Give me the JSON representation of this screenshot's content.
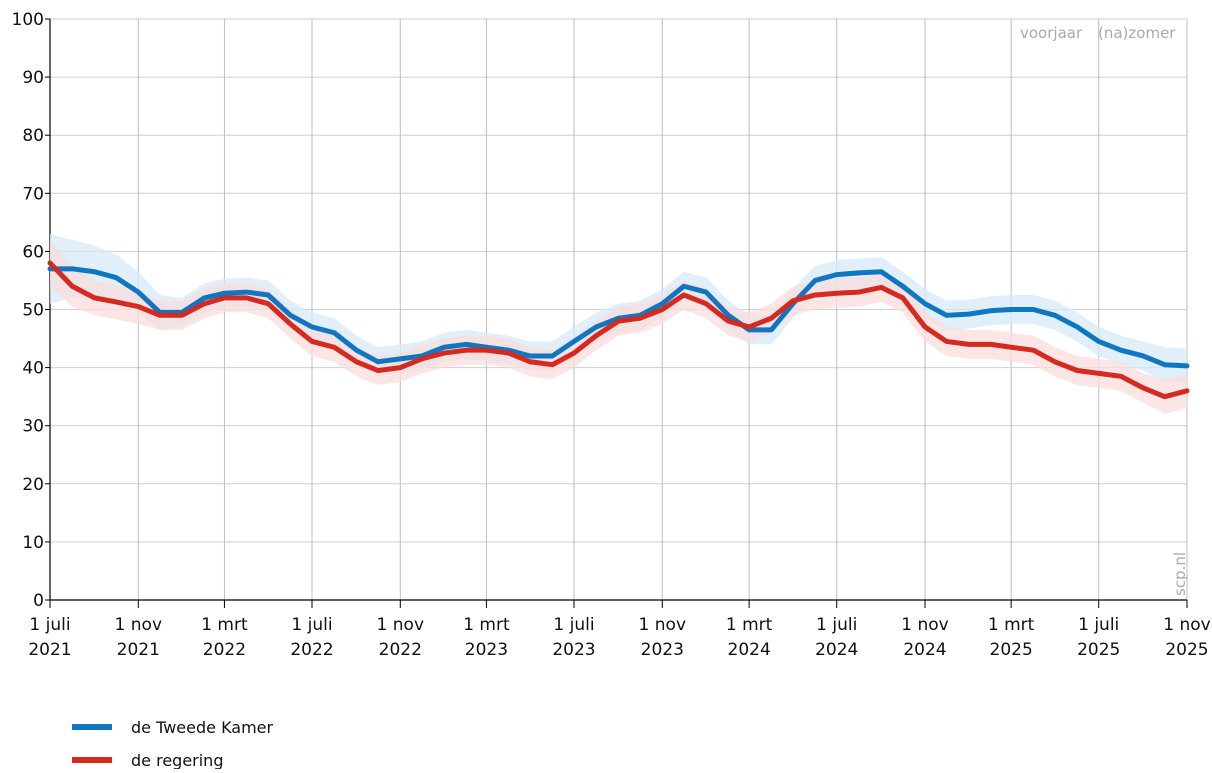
{
  "chart_data": {
    "type": "line",
    "x": [
      "2021-07-01",
      "2021-08-01",
      "2021-09-01",
      "2021-10-01",
      "2021-11-01",
      "2021-12-01",
      "2022-01-01",
      "2022-02-01",
      "2022-03-01",
      "2022-04-01",
      "2022-05-01",
      "2022-06-01",
      "2022-07-01",
      "2022-08-01",
      "2022-09-01",
      "2022-10-01",
      "2022-11-01",
      "2022-12-01",
      "2023-01-01",
      "2023-02-01",
      "2023-03-01",
      "2023-04-01",
      "2023-05-01",
      "2023-06-01",
      "2023-07-01",
      "2023-08-01",
      "2023-09-01",
      "2023-10-01",
      "2023-11-01",
      "2023-12-01",
      "2024-01-01",
      "2024-02-01",
      "2024-03-01",
      "2024-04-01",
      "2024-05-01",
      "2024-06-01",
      "2024-07-01",
      "2024-08-01",
      "2024-09-01",
      "2024-10-01",
      "2024-11-01",
      "2024-12-01",
      "2025-01-01",
      "2025-02-01",
      "2025-03-01",
      "2025-04-01",
      "2025-05-01",
      "2025-06-01",
      "2025-07-01",
      "2025-08-01",
      "2025-09-01",
      "2025-10-01",
      "2025-11-01"
    ],
    "series": [
      {
        "name": "de Tweede Kamer",
        "color": "#0f76c1",
        "band_color": "#d6e9f7",
        "values": [
          57,
          57,
          56.5,
          55.5,
          53,
          49.5,
          49.5,
          52,
          52.8,
          53,
          52.5,
          49,
          47,
          46,
          43,
          41,
          41.5,
          42,
          43.5,
          44,
          43.5,
          43,
          42,
          42,
          44.5,
          47,
          48.5,
          49,
          51,
          54,
          53,
          49,
          46.5,
          46.5,
          51,
          55,
          56,
          56.3,
          56.5,
          54,
          51,
          49,
          49.2,
          49.8,
          50,
          50,
          49,
          47,
          44.5,
          43,
          42,
          40.5,
          40.3
        ],
        "margin": [
          6,
          5,
          4.5,
          4,
          3.5,
          3,
          2.5,
          2.5,
          2.5,
          2.5,
          2.5,
          2.5,
          2.5,
          2.5,
          2.5,
          2.5,
          2.5,
          2.5,
          2.5,
          2.5,
          2.5,
          2.5,
          2.5,
          2.5,
          2.5,
          2.5,
          2.5,
          2.5,
          2.5,
          2.5,
          2.5,
          2.5,
          2.5,
          2.5,
          2.5,
          2.5,
          2.5,
          2.5,
          2.5,
          2.5,
          2.5,
          2.5,
          2.5,
          2.5,
          2.5,
          2.5,
          2.5,
          2.5,
          2.5,
          2.5,
          2.5,
          3,
          3
        ]
      },
      {
        "name": "de regering",
        "color": "#d52a1f",
        "band_color": "#f9dedc",
        "values": [
          58,
          54,
          52,
          51.3,
          50.5,
          49,
          49,
          51,
          52,
          52,
          51,
          47.5,
          44.5,
          43.5,
          41,
          39.5,
          40,
          41.5,
          42.5,
          43,
          43,
          42.5,
          41,
          40.5,
          42.5,
          45.5,
          48,
          48.5,
          50,
          52.5,
          51,
          48,
          47,
          48.5,
          51.5,
          52.5,
          52.8,
          53,
          53.8,
          52,
          47,
          44.5,
          44,
          44,
          43.5,
          43,
          41,
          39.5,
          39,
          38.5,
          36.5,
          35,
          36
        ],
        "margin": [
          4,
          3.5,
          3,
          3,
          3,
          2.5,
          2.5,
          2.5,
          2.5,
          2.5,
          2.5,
          2.5,
          2.5,
          2.5,
          2.5,
          2.5,
          2.5,
          2.5,
          2.5,
          2.5,
          2.5,
          2.5,
          2.5,
          2.5,
          2.5,
          2.5,
          2.5,
          2.5,
          2.5,
          2.5,
          2.5,
          2.5,
          2.5,
          2.5,
          2.5,
          2.5,
          2.5,
          2.5,
          2.5,
          2.5,
          2.5,
          2.5,
          2.5,
          2.5,
          2.5,
          2.5,
          2.5,
          2.5,
          2.5,
          2.5,
          2.5,
          3,
          3
        ]
      }
    ],
    "xlim": [
      "2021-07-01",
      "2025-11-01"
    ],
    "xticks": [
      {
        "value": "2021-07-01",
        "label": [
          "1 juli",
          "2021"
        ]
      },
      {
        "value": "2021-11-01",
        "label": [
          "1 nov",
          "2021"
        ]
      },
      {
        "value": "2022-03-01",
        "label": [
          "1 mrt",
          "2022"
        ]
      },
      {
        "value": "2022-07-01",
        "label": [
          "1 juli",
          "2022"
        ]
      },
      {
        "value": "2022-11-01",
        "label": [
          "1 nov",
          "2022"
        ]
      },
      {
        "value": "2023-03-01",
        "label": [
          "1 mrt",
          "2023"
        ]
      },
      {
        "value": "2023-07-01",
        "label": [
          "1 juli",
          "2023"
        ]
      },
      {
        "value": "2023-11-01",
        "label": [
          "1 nov",
          "2023"
        ]
      },
      {
        "value": "2024-03-01",
        "label": [
          "1 mrt",
          "2024"
        ]
      },
      {
        "value": "2024-07-01",
        "label": [
          "1 juli",
          "2024"
        ]
      },
      {
        "value": "2024-11-01",
        "label": [
          "1 nov",
          "2024"
        ]
      },
      {
        "value": "2025-03-01",
        "label": [
          "1 mrt",
          "2025"
        ]
      },
      {
        "value": "2025-07-01",
        "label": [
          "1 juli",
          "2025"
        ]
      },
      {
        "value": "2025-11-01",
        "label": [
          "1 nov",
          "2025"
        ]
      }
    ],
    "ylim": [
      0,
      100
    ],
    "yticks": [
      0,
      10,
      20,
      30,
      40,
      50,
      60,
      70,
      80,
      90,
      100
    ],
    "grid": true,
    "annotations": [
      "voorjaar",
      "(na)zomer",
      "scp.nl"
    ]
  }
}
